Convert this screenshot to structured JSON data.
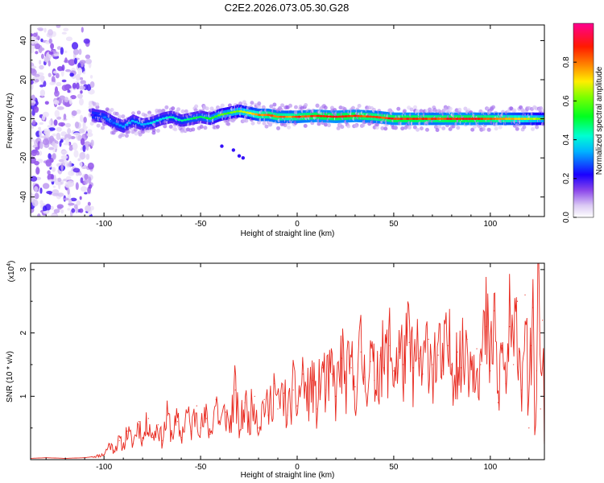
{
  "title": "C2E2.2026.073.05.30.G28",
  "chart_data": [
    {
      "type": "heatmap",
      "xlabel": "Height of straight line (km)",
      "ylabel": "Frequency (Hz)",
      "xlim": [
        -138,
        128
      ],
      "ylim": [
        -50,
        48
      ],
      "x_ticks": [
        -100,
        -50,
        0,
        50,
        100
      ],
      "y_ticks": [
        -40,
        -20,
        0,
        20,
        40
      ],
      "x_tick_labels": [
        "-100",
        "-50",
        "0",
        "50",
        "100"
      ],
      "y_tick_labels": [
        "-40",
        "-20",
        "0",
        "20",
        "40"
      ],
      "noise_region_km": [
        -138,
        -106
      ],
      "ridge": {
        "x": [
          -106,
          -100,
          -95,
          -90,
          -85,
          -80,
          -75,
          -70,
          -65,
          -60,
          -55,
          -50,
          -45,
          -40,
          -35,
          -30,
          -25,
          -20,
          -15,
          -10,
          -5,
          0,
          10,
          20,
          30,
          40,
          50,
          60,
          70,
          80,
          90,
          100,
          110,
          120,
          128
        ],
        "frequency_hz": [
          2,
          1,
          -2,
          -4,
          -1,
          -3,
          -2,
          0,
          1,
          -1,
          0,
          1,
          0,
          2,
          3,
          4,
          3,
          2,
          2,
          1,
          1,
          1,
          1.5,
          1,
          1.5,
          1,
          0,
          0,
          0,
          0,
          0,
          0,
          0,
          0,
          0
        ],
        "amplitude": [
          0.2,
          0.3,
          0.3,
          0.35,
          0.35,
          0.35,
          0.4,
          0.4,
          0.45,
          0.45,
          0.5,
          0.5,
          0.55,
          0.6,
          0.6,
          0.65,
          0.7,
          0.8,
          0.85,
          0.85,
          0.8,
          0.85,
          0.9,
          0.9,
          0.9,
          0.85,
          0.9,
          0.9,
          0.85,
          0.9,
          0.9,
          0.85,
          0.8,
          0.7,
          0.6
        ]
      },
      "outliers": [
        {
          "x": -39,
          "frequency_hz": -14
        },
        {
          "x": -33,
          "frequency_hz": -16
        },
        {
          "x": -30,
          "frequency_hz": -19
        },
        {
          "x": -28,
          "frequency_hz": -20
        }
      ],
      "colorbar": {
        "label": "Normalized spectral amplitude",
        "range": [
          0,
          1
        ],
        "ticks": [
          0.0,
          0.2,
          0.4,
          0.6,
          0.8
        ],
        "tick_labels": [
          "0.0",
          "0.2",
          "0.4",
          "0.6",
          "0.8"
        ]
      }
    },
    {
      "type": "line",
      "xlabel": "Height of straight line (km)",
      "ylabel": "SNR (10 * v/v)",
      "y_multiplier": "(x10",
      "y_multiplier_exp": "4",
      "y_multiplier_close": ")",
      "xlim": [
        -138,
        128
      ],
      "ylim": [
        0,
        3.1
      ],
      "x_ticks": [
        -100,
        -50,
        0,
        50,
        100
      ],
      "y_ticks": [
        1,
        2,
        3
      ],
      "x_tick_labels": [
        "-100",
        "-50",
        "0",
        "50",
        "100"
      ],
      "y_tick_labels": [
        "1",
        "2",
        "3"
      ],
      "color": "#e8281e",
      "series": [
        {
          "name": "SNR",
          "x": [
            -138,
            -130,
            -120,
            -110,
            -105,
            -100,
            -97,
            -95,
            -92,
            -90,
            -88,
            -85,
            -82,
            -80,
            -77,
            -75,
            -72,
            -70,
            -67,
            -65,
            -62,
            -60,
            -57,
            -55,
            -52,
            -50,
            -47,
            -45,
            -42,
            -40,
            -37,
            -35,
            -32,
            -30,
            -27,
            -25,
            -22,
            -20,
            -17,
            -15,
            -12,
            -10,
            -7,
            -5,
            -2,
            0,
            3,
            5,
            8,
            10,
            13,
            15,
            18,
            20,
            23,
            25,
            28,
            30,
            33,
            35,
            38,
            40,
            43,
            45,
            48,
            50,
            53,
            55,
            58,
            60,
            63,
            65,
            68,
            70,
            73,
            75,
            78,
            80,
            83,
            85,
            88,
            90,
            93,
            95,
            98,
            100,
            102,
            104,
            106,
            108,
            110,
            112,
            114,
            116,
            118,
            120,
            121,
            122,
            123,
            124,
            125,
            126,
            127,
            128
          ],
          "y": [
            0.02,
            0.03,
            0.02,
            0.03,
            0.05,
            0.08,
            0.25,
            0.15,
            0.3,
            0.2,
            0.45,
            0.25,
            0.6,
            0.3,
            0.65,
            0.35,
            0.55,
            0.3,
            0.7,
            0.4,
            0.6,
            0.35,
            0.75,
            0.45,
            0.85,
            0.5,
            0.65,
            0.4,
            0.95,
            0.55,
            0.75,
            0.5,
            1.1,
            0.45,
            0.9,
            0.6,
            1.0,
            0.5,
            0.95,
            0.7,
            1.2,
            0.8,
            1.05,
            0.7,
            1.1,
            0.85,
            1.35,
            0.95,
            1.25,
            0.8,
            1.45,
            1.1,
            1.35,
            1.0,
            1.6,
            1.2,
            1.45,
            1.15,
            1.7,
            1.3,
            1.55,
            1.25,
            1.65,
            1.45,
            1.8,
            1.4,
            1.7,
            1.5,
            1.85,
            1.45,
            1.6,
            1.35,
            1.9,
            1.5,
            1.65,
            1.4,
            1.8,
            1.5,
            1.7,
            1.45,
            1.9,
            1.55,
            1.75,
            1.5,
            2.1,
            1.4,
            2.35,
            0.9,
            1.8,
            1.2,
            2.1,
            1.5,
            2.5,
            1.1,
            2.6,
            0.5,
            1.8,
            2.4,
            0.4,
            1.4,
            3.1,
            0.8,
            2.2,
            0.3
          ]
        }
      ]
    }
  ]
}
